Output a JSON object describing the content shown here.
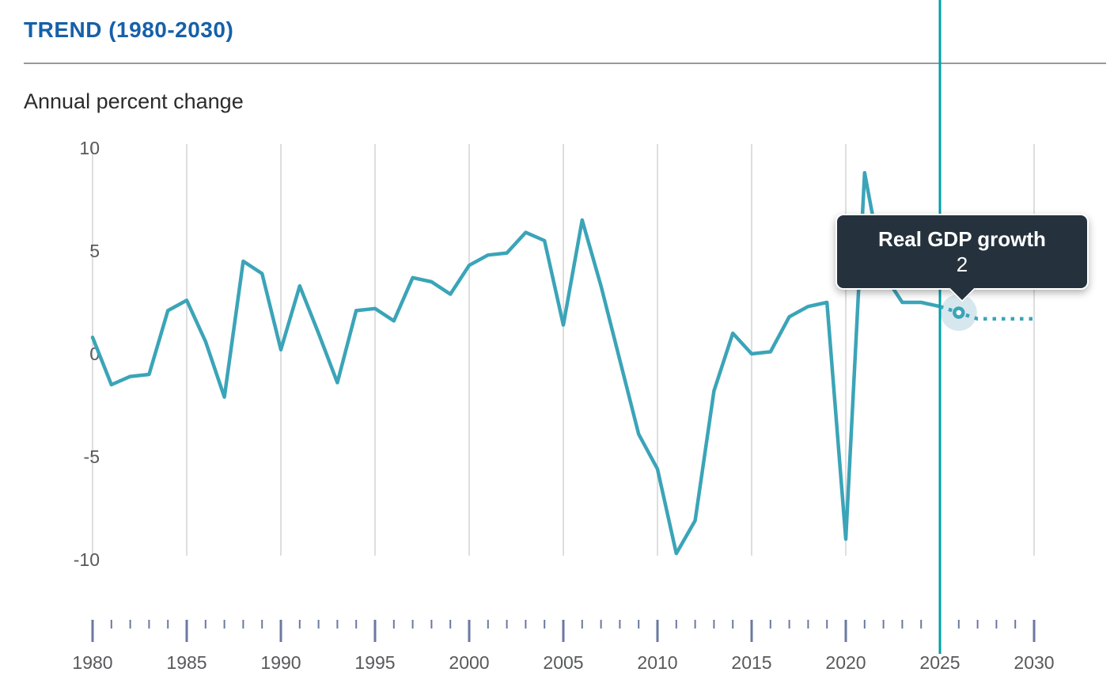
{
  "header": {
    "title": "TREND (1980-2030)",
    "subtitle": "Annual percent change"
  },
  "tooltip": {
    "title": "Real GDP growth",
    "value": "2"
  },
  "colors": {
    "title_blue": "#1660a9",
    "subtitle_dark": "#2b2b2b",
    "divider_gray": "#999999",
    "line_teal": "#3ba4b8",
    "vertical_line_teal": "#00a0a8",
    "halo_blue": "#d6e8ee",
    "gridline_gray": "#dedede",
    "tick_slate": "#6b79a0",
    "axis_label_gray": "#58595b",
    "tooltip_bg": "#25323d",
    "tooltip_text": "#ffffff"
  },
  "chart_data": {
    "type": "line",
    "title": "TREND (1980-2030)",
    "ylabel": "Annual percent change",
    "series_name": "Real GDP growth",
    "x_range": [
      1980,
      2030
    ],
    "ylim": [
      -10,
      10
    ],
    "y_ticks": [
      10,
      5,
      0,
      -5,
      -10
    ],
    "x_tick_labels": [
      1980,
      1985,
      1990,
      1995,
      2000,
      2005,
      2010,
      2015,
      2020,
      2025,
      2030
    ],
    "grid": "vertical-only",
    "legend_position": "none",
    "historical": {
      "years": [
        1980,
        1981,
        1982,
        1983,
        1984,
        1985,
        1986,
        1987,
        1988,
        1989,
        1990,
        1991,
        1992,
        1993,
        1994,
        1995,
        1996,
        1997,
        1998,
        1999,
        2000,
        2001,
        2002,
        2003,
        2004,
        2005,
        2006,
        2007,
        2008,
        2009,
        2010,
        2011,
        2012,
        2013,
        2014,
        2015,
        2016,
        2017,
        2018,
        2019,
        2020,
        2021,
        2022,
        2023,
        2024,
        2025
      ],
      "values": [
        0.8,
        -1.5,
        -1.1,
        -1.0,
        2.1,
        2.6,
        0.6,
        -2.1,
        4.5,
        3.9,
        0.2,
        3.3,
        1.0,
        -1.4,
        2.1,
        2.2,
        1.6,
        3.7,
        3.5,
        2.9,
        4.3,
        4.8,
        4.9,
        5.9,
        5.5,
        1.4,
        6.5,
        3.3,
        -0.3,
        -3.9,
        -5.6,
        -9.7,
        -8.1,
        -1.8,
        1.0,
        0.0,
        0.1,
        1.8,
        2.3,
        2.5,
        -9.0,
        8.8,
        3.9,
        2.5,
        2.5,
        2.3
      ]
    },
    "forecast": {
      "style": "dotted",
      "years": [
        2025,
        2026,
        2027,
        2028,
        2029,
        2030
      ],
      "values": [
        2.3,
        2.0,
        1.7,
        1.7,
        1.7,
        1.7
      ]
    },
    "highlight": {
      "year": 2026,
      "value": 2
    },
    "annotation_line_year": 2025
  }
}
